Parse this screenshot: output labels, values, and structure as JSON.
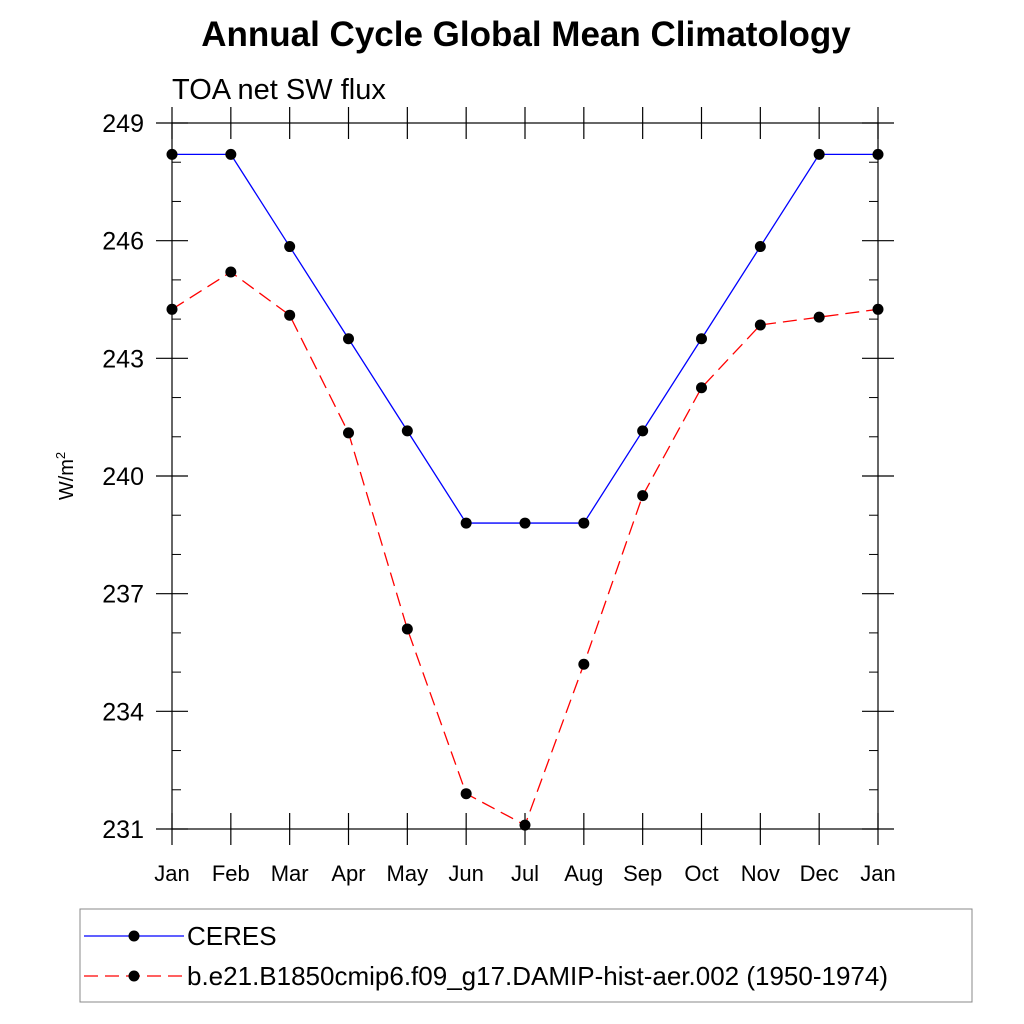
{
  "chart_data": {
    "type": "line",
    "title": "Annual Cycle Global Mean Climatology",
    "subtitle": "TOA net SW flux",
    "xlabel": "",
    "ylabel": "W/m",
    "ylabel_superscript": "2",
    "ylim": [
      231,
      249
    ],
    "yticks": [
      231,
      234,
      237,
      240,
      243,
      246,
      249
    ],
    "categories": [
      "Jan",
      "Feb",
      "Mar",
      "Apr",
      "May",
      "Jun",
      "Jul",
      "Aug",
      "Sep",
      "Oct",
      "Nov",
      "Dec",
      "Jan"
    ],
    "series": [
      {
        "name": "CERES",
        "color": "#0000ff",
        "dash": "solid",
        "marker": "filled-circle",
        "values": [
          248.2,
          248.2,
          245.85,
          243.5,
          241.15,
          238.8,
          238.8,
          238.8,
          241.15,
          243.5,
          245.85,
          248.2,
          248.2
        ]
      },
      {
        "name": "b.e21.B1850cmip6.f09_g17.DAMIP-hist-aer.002 (1950-1974)",
        "color": "#ff0000",
        "dash": "dashed",
        "marker": "filled-circle",
        "values": [
          244.25,
          245.2,
          244.1,
          241.1,
          236.1,
          231.9,
          231.1,
          235.2,
          239.5,
          242.25,
          243.85,
          244.05,
          244.25
        ]
      }
    ],
    "legend_position": "bottom"
  }
}
